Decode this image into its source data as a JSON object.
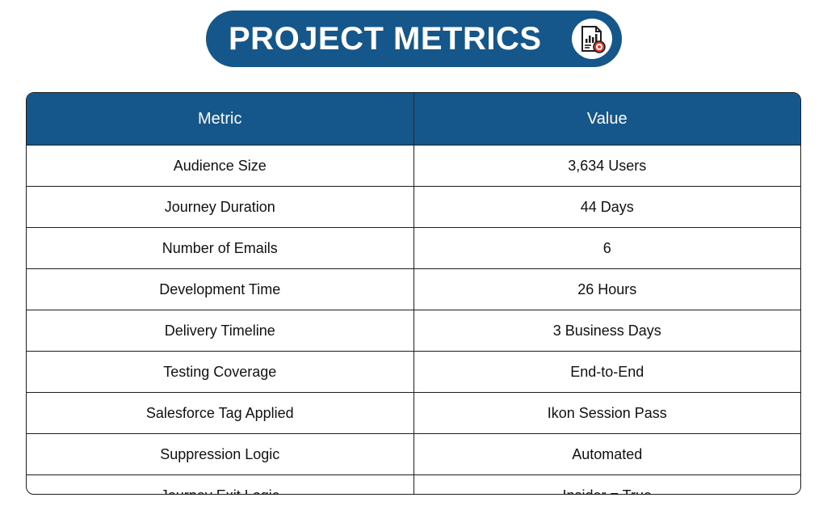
{
  "header": {
    "title": "PROJECT METRICS",
    "icon": "report-chart-target-icon",
    "colors": {
      "primary": "#15568b",
      "accent": "#e03a2f"
    }
  },
  "table": {
    "columns": [
      "Metric",
      "Value"
    ],
    "rows": [
      [
        "Audience Size",
        "3,634 Users"
      ],
      [
        "Journey Duration",
        "44 Days"
      ],
      [
        "Number of Emails",
        "6"
      ],
      [
        "Development Time",
        "26 Hours"
      ],
      [
        "Delivery Timeline",
        "3 Business Days"
      ],
      [
        "Testing Coverage",
        "End-to-End"
      ],
      [
        "Salesforce Tag Applied",
        "Ikon Session Pass"
      ],
      [
        "Suppression Logic",
        "Automated"
      ],
      [
        "Journey Exit Logic",
        "Insider = True"
      ]
    ]
  }
}
